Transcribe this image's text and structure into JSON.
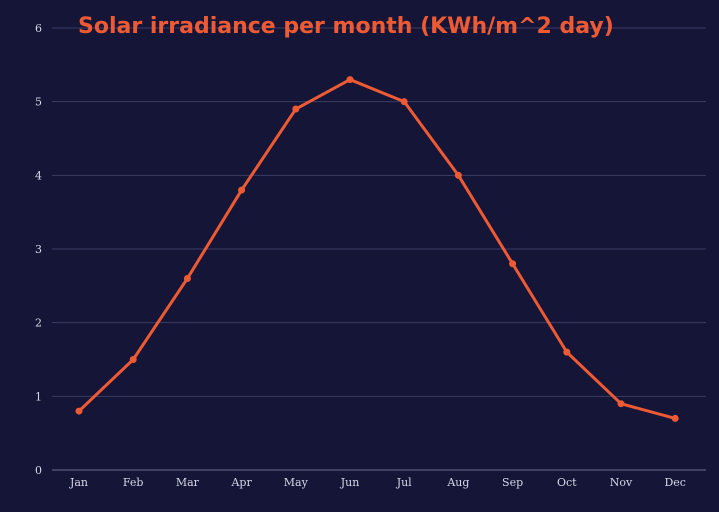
{
  "colors": {
    "background": "#141537",
    "accent": "#ee5a34",
    "text": "#d6d7e6",
    "grid": "#3a3c63"
  },
  "chart_data": {
    "type": "line",
    "title": "Solar irradiance per month (KWh/m^2 day)",
    "xlabel": "",
    "ylabel": "",
    "categories": [
      "Jan",
      "Feb",
      "Mar",
      "Apr",
      "May",
      "Jun",
      "Jul",
      "Aug",
      "Sep",
      "Oct",
      "Nov",
      "Dec"
    ],
    "series": [
      {
        "name": "Solar irradiance",
        "values": [
          0.8,
          1.5,
          2.6,
          3.8,
          4.9,
          5.3,
          5.0,
          4.0,
          2.8,
          1.6,
          0.9,
          0.7
        ]
      }
    ],
    "ylim": [
      0,
      6
    ],
    "yticks": [
      0,
      1,
      2,
      3,
      4,
      5,
      6
    ],
    "grid": true,
    "legend": "none"
  }
}
